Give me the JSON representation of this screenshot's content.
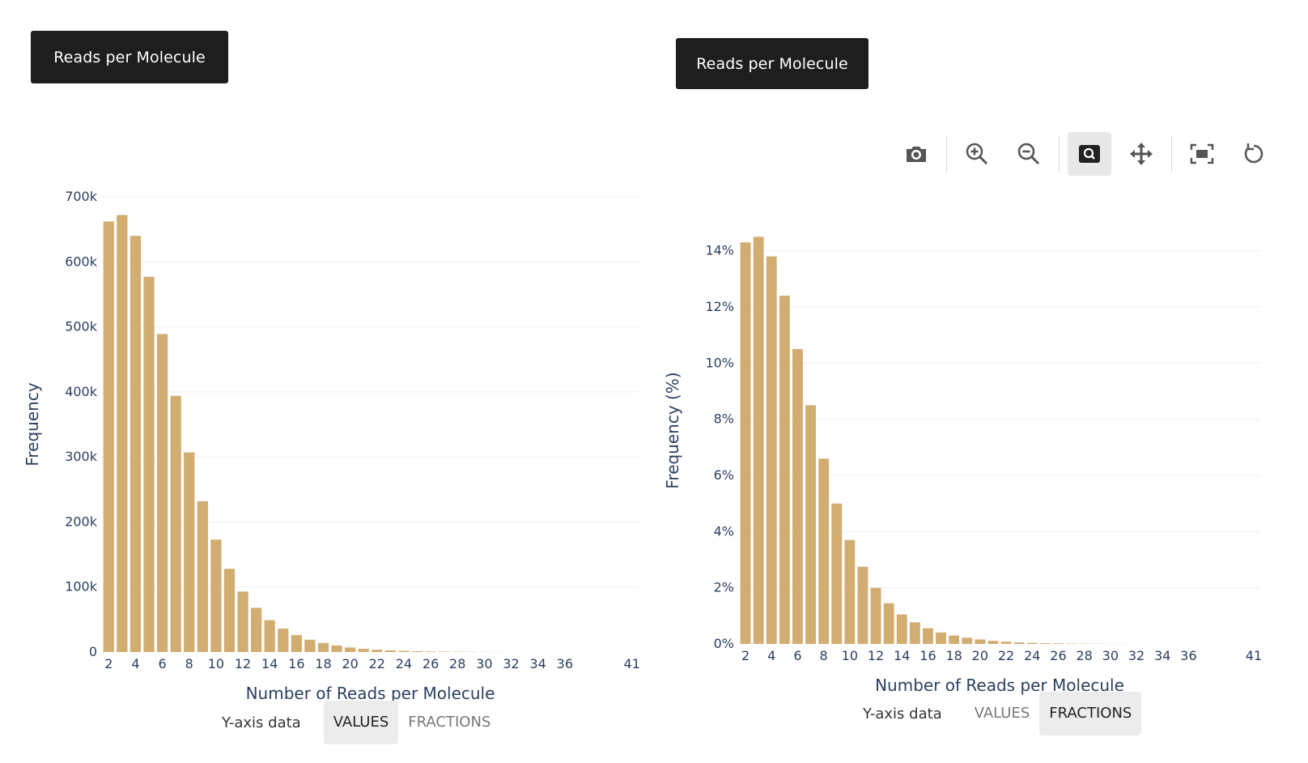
{
  "panels": [
    {
      "title": "Reads per Molecule",
      "toggle": {
        "label": "Y-axis data",
        "options": [
          "VALUES",
          "FRACTIONS"
        ],
        "selected": "VALUES"
      }
    },
    {
      "title": "Reads per Molecule",
      "toggle": {
        "label": "Y-axis data",
        "options": [
          "VALUES",
          "FRACTIONS"
        ],
        "selected": "FRACTIONS"
      },
      "modebar": [
        "camera-icon",
        "zoom-in-icon",
        "zoom-out-icon",
        "zoom-box-icon",
        "pan-icon",
        "autoscale-icon",
        "reset-axes-icon"
      ],
      "modebar_active": "zoom-box-icon"
    }
  ],
  "colors": {
    "bar": "#d2ad72",
    "title_bg": "#1e1e1e",
    "axis_text": "#2a3f5f",
    "grid": "#ebf0f8"
  },
  "chart_data": [
    {
      "type": "bar",
      "xlabel": "Number of Reads per Molecule",
      "ylabel": "Frequency",
      "x": [
        2,
        3,
        4,
        5,
        6,
        7,
        8,
        9,
        10,
        11,
        12,
        13,
        14,
        15,
        16,
        17,
        18,
        19,
        20,
        21,
        22,
        23,
        24,
        25,
        26,
        27,
        28,
        29,
        30,
        31,
        32,
        33,
        34,
        35,
        36,
        37,
        38,
        39,
        40,
        41
      ],
      "values": [
        662000,
        672000,
        640000,
        577000,
        489000,
        394000,
        307000,
        232000,
        173000,
        128000,
        93000,
        68000,
        49000,
        36000,
        26000,
        19000,
        14000,
        10000,
        7000,
        5000,
        3500,
        2500,
        1800,
        1300,
        900,
        650,
        450,
        320,
        230,
        160,
        110,
        80,
        55,
        40,
        28,
        20,
        14,
        10,
        7,
        5
      ],
      "xticks": [
        "2",
        "4",
        "6",
        "8",
        "10",
        "12",
        "14",
        "16",
        "18",
        "20",
        "22",
        "24",
        "26",
        "28",
        "30",
        "32",
        "34",
        "36",
        "41"
      ],
      "yticks": [
        "0",
        "100k",
        "200k",
        "300k",
        "400k",
        "500k",
        "600k",
        "700k"
      ],
      "ylim": [
        0,
        700000
      ],
      "grid": true
    },
    {
      "type": "bar",
      "xlabel": "Number of Reads per Molecule",
      "ylabel": "Frequency (%)",
      "x": [
        2,
        3,
        4,
        5,
        6,
        7,
        8,
        9,
        10,
        11,
        12,
        13,
        14,
        15,
        16,
        17,
        18,
        19,
        20,
        21,
        22,
        23,
        24,
        25,
        26,
        27,
        28,
        29,
        30,
        31,
        32,
        33,
        34,
        35,
        36,
        37,
        38,
        39,
        40,
        41
      ],
      "values": [
        14.3,
        14.5,
        13.8,
        12.4,
        10.5,
        8.5,
        6.6,
        5.0,
        3.7,
        2.75,
        2.0,
        1.45,
        1.05,
        0.77,
        0.56,
        0.41,
        0.3,
        0.22,
        0.16,
        0.11,
        0.08,
        0.055,
        0.04,
        0.028,
        0.02,
        0.014,
        0.01,
        0.007,
        0.005,
        0.0035,
        0.0025,
        0.0018,
        0.0012,
        0.0009,
        0.0006,
        0.0004,
        0.0003,
        0.0002,
        0.00015,
        0.0001
      ],
      "xticks": [
        "2",
        "4",
        "6",
        "8",
        "10",
        "12",
        "14",
        "16",
        "18",
        "20",
        "22",
        "24",
        "26",
        "28",
        "30",
        "32",
        "34",
        "36",
        "41"
      ],
      "yticks": [
        "0%",
        "2%",
        "4%",
        "6%",
        "8%",
        "10%",
        "12%",
        "14%"
      ],
      "ylim": [
        0,
        15.2
      ],
      "grid": true
    }
  ]
}
